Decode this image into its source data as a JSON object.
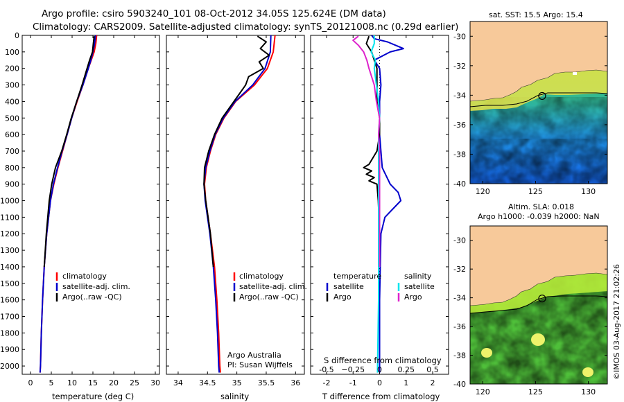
{
  "header": {
    "line1": "Argo profile: csiro 5903240_101 08-Oct-2012 34.05S 125.624E (DM data)",
    "line2": "Climatology: CARS2009. Satellite-adjusted climatology: synTS_20121008.nc (0.29d earlier)"
  },
  "colors": {
    "climatology": "#ff0000",
    "satellite": "#0000cc",
    "argo": "#000000",
    "salinity_satellite": "#00e5ee",
    "salinity_argo": "#dd22cc",
    "land": "#f7c99a"
  },
  "chart_data": [
    {
      "type": "line",
      "panel": "temperature",
      "xlabel": "temperature (deg C)",
      "ylabel": "",
      "xlim": [
        -2,
        31
      ],
      "ylim": [
        2050,
        0
      ],
      "xticks": [
        0,
        5,
        10,
        15,
        20,
        25,
        30
      ],
      "yticks": [
        0,
        100,
        200,
        300,
        400,
        500,
        600,
        700,
        800,
        900,
        1000,
        1100,
        1200,
        1300,
        1400,
        1500,
        1600,
        1700,
        1800,
        1900,
        2000
      ],
      "legend": [
        "climatology",
        "satellite-adj. clim.",
        "Argo(..raw -QC)"
      ],
      "series": [
        {
          "name": "climatology",
          "depth": [
            0,
            50,
            100,
            150,
            200,
            300,
            400,
            500,
            600,
            700,
            800,
            900,
            1000,
            1200,
            1400,
            1600,
            1800,
            2000,
            2040
          ],
          "values": [
            15.9,
            15.7,
            15.3,
            14.6,
            13.9,
            12.6,
            11.2,
            9.9,
            8.8,
            7.7,
            6.6,
            5.6,
            4.8,
            3.9,
            3.3,
            2.9,
            2.6,
            2.4,
            2.3
          ]
        },
        {
          "name": "satellite-adj. clim.",
          "depth": [
            0,
            50,
            100,
            150,
            200,
            300,
            400,
            500,
            600,
            700,
            800,
            900,
            1000,
            1200,
            1400,
            1600,
            1800,
            2000,
            2040
          ],
          "values": [
            15.6,
            15.4,
            15.0,
            14.5,
            13.9,
            12.6,
            11.1,
            9.9,
            8.8,
            7.6,
            6.5,
            5.5,
            4.8,
            3.9,
            3.3,
            2.9,
            2.6,
            2.4,
            2.3
          ]
        },
        {
          "name": "Argo(..raw -QC)",
          "depth": [
            5,
            50,
            100,
            150,
            200,
            300,
            400,
            500,
            600,
            700,
            800,
            900,
            1000,
            1200,
            1400
          ],
          "values": [
            15.3,
            15.1,
            14.9,
            14.2,
            13.6,
            12.4,
            11.1,
            9.8,
            8.7,
            7.5,
            6.0,
            5.1,
            4.5,
            3.8,
            3.3
          ]
        }
      ]
    },
    {
      "type": "line",
      "panel": "salinity",
      "xlabel": "salinity",
      "xlim": [
        33.8,
        36.15
      ],
      "ylim": [
        2050,
        0
      ],
      "xticks": [
        34,
        34.5,
        35,
        35.5,
        36
      ],
      "legend": [
        "climatology",
        "satellite-adj. clim.",
        "Argo(..raw -QC)"
      ],
      "annotation": [
        "Argo Australia",
        "PI: Susan Wijffels"
      ],
      "series": [
        {
          "name": "climatology",
          "depth": [
            0,
            100,
            200,
            300,
            400,
            500,
            600,
            700,
            800,
            900,
            1000,
            1200,
            1400,
            1600,
            1800,
            2000,
            2040
          ],
          "values": [
            35.65,
            35.62,
            35.52,
            35.3,
            34.98,
            34.78,
            34.64,
            34.55,
            34.48,
            34.45,
            34.47,
            34.55,
            34.62,
            34.66,
            34.69,
            34.71,
            34.72
          ]
        },
        {
          "name": "satellite-adj. clim.",
          "depth": [
            0,
            100,
            200,
            300,
            400,
            500,
            600,
            700,
            800,
            900,
            1000,
            1200,
            1400,
            1600,
            1800,
            2000,
            2040
          ],
          "values": [
            35.58,
            35.57,
            35.48,
            35.27,
            34.97,
            34.77,
            34.63,
            34.54,
            34.47,
            34.44,
            34.46,
            34.54,
            34.6,
            34.64,
            34.67,
            34.69,
            34.7
          ]
        },
        {
          "name": "Argo(..raw -QC)",
          "depth": [
            5,
            40,
            80,
            120,
            160,
            200,
            250,
            300,
            350,
            400,
            500,
            600,
            700,
            800,
            900,
            1000,
            1200,
            1400
          ],
          "values": [
            35.35,
            35.5,
            35.4,
            35.55,
            35.38,
            35.45,
            35.2,
            35.15,
            35.05,
            34.95,
            34.75,
            34.62,
            34.52,
            34.45,
            34.44,
            34.47,
            34.55,
            34.6
          ]
        }
      ]
    },
    {
      "type": "line",
      "panel": "difference",
      "xlabel": "T difference from climatology",
      "xlabel2": "S difference from climatology",
      "xlim": [
        -2.6,
        2.6
      ],
      "ylim": [
        2050,
        0
      ],
      "xticks_T": [
        -2,
        -1,
        0,
        1,
        2
      ],
      "xticks_S": [
        -0.5,
        -0.25,
        0,
        0.25,
        0.5
      ],
      "xtick_labels_S": [
        "-0.5",
        "−0.25",
        "0",
        "0.25",
        "0.5"
      ],
      "legend": {
        "temperature": [
          "satellite",
          "Argo"
        ],
        "salinity": [
          "satellite",
          "Argo"
        ],
        "temperature_title": "temperature",
        "salinity_title": "salinity"
      },
      "series": [
        {
          "name": "T satellite",
          "depth": [
            0,
            20,
            40,
            60,
            80,
            100,
            150,
            200,
            300,
            400,
            500,
            600,
            700,
            800,
            900,
            950,
            1000,
            1050,
            1100,
            1200,
            1600,
            2040
          ],
          "values": [
            -0.3,
            -0.2,
            0.3,
            0.6,
            0.9,
            0.4,
            -0.2,
            0.0,
            0.05,
            0.0,
            0.0,
            0.0,
            0.05,
            0.1,
            0.4,
            0.7,
            0.8,
            0.5,
            0.2,
            0.05,
            0.0,
            0.0
          ]
        },
        {
          "name": "T Argo",
          "depth": [
            5,
            50,
            100,
            150,
            200,
            300,
            400,
            500,
            600,
            700,
            780,
            800,
            820,
            840,
            860,
            880,
            900,
            1000,
            1200,
            1400
          ],
          "values": [
            -0.4,
            -0.5,
            -0.3,
            -0.2,
            -0.1,
            -0.1,
            -0.1,
            0.0,
            0.0,
            -0.1,
            -0.4,
            -0.6,
            -0.3,
            -0.5,
            -0.2,
            -0.4,
            -0.1,
            -0.05,
            0.0,
            0.0
          ]
        },
        {
          "name": "S satellite",
          "depth": [
            0,
            50,
            100,
            150,
            200,
            300,
            400,
            500,
            600,
            700,
            800,
            900,
            1000,
            1200,
            1600,
            2040
          ],
          "values": [
            -0.05,
            -0.05,
            -0.08,
            -0.04,
            -0.05,
            -0.03,
            -0.01,
            0.0,
            -0.01,
            -0.01,
            -0.01,
            -0.01,
            -0.01,
            -0.01,
            -0.01,
            -0.02
          ]
        },
        {
          "name": "S Argo",
          "depth": [
            5,
            30,
            60,
            100,
            150,
            200,
            300,
            400,
            500,
            600,
            700,
            800,
            900,
            1000,
            1200,
            1400
          ],
          "values": [
            -0.2,
            -0.25,
            -0.2,
            -0.15,
            -0.12,
            -0.1,
            -0.05,
            -0.03,
            0.0,
            -0.01,
            0.0,
            0.0,
            0.0,
            0.0,
            0.0,
            0.0
          ]
        }
      ]
    },
    {
      "type": "heatmap",
      "panel": "map-sst",
      "title": "sat. SST: 15.5 Argo: 15.4",
      "xlim": [
        118.8,
        131.8
      ],
      "ylim": [
        -40,
        -29
      ],
      "xticks": [
        120,
        125,
        130
      ],
      "yticks": [
        -30,
        -32,
        -34,
        -36,
        -38,
        -40
      ],
      "marker": {
        "lon": 125.624,
        "lat": -34.05
      }
    },
    {
      "type": "heatmap",
      "panel": "map-sla",
      "title": "Altim. SLA: 0.018",
      "subtitle": "Argo h1000: -0.039 h2000: NaN",
      "xlim": [
        118.8,
        131.8
      ],
      "ylim": [
        -40,
        -29
      ],
      "xticks": [
        120,
        125,
        130
      ],
      "yticks": [
        -30,
        -32,
        -34,
        -36,
        -38,
        -40
      ],
      "marker": {
        "lon": 125.624,
        "lat": -34.05
      }
    }
  ],
  "footer": {
    "side_text": "©IMOS 03-Aug-2017 21:02:26"
  }
}
